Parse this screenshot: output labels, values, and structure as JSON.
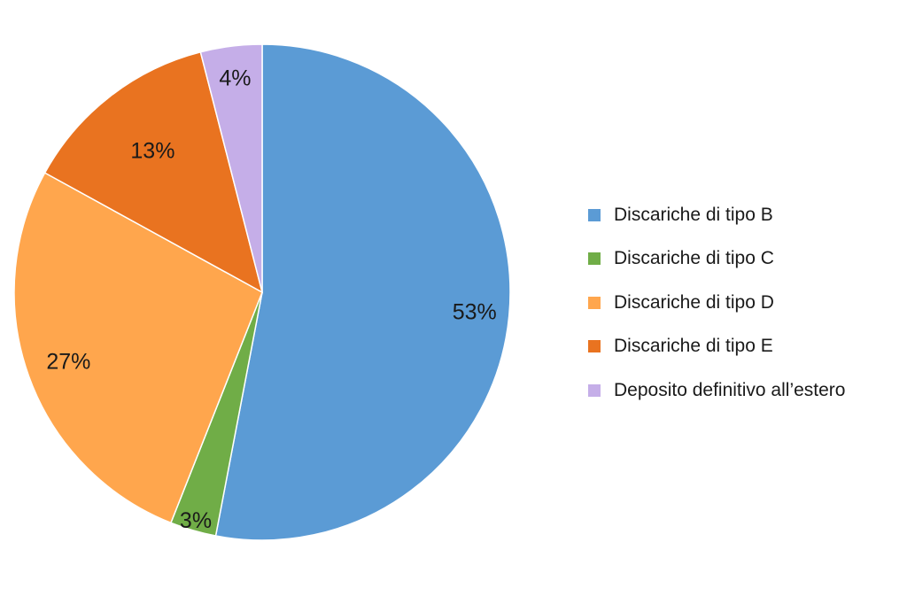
{
  "chart_data": {
    "type": "pie",
    "title": "",
    "legend_position": "right",
    "categories": [
      "Discariche di tipo B",
      "Discariche di tipo C",
      "Discariche di tipo D",
      "Discariche di tipo E",
      "Deposito definitivo all’estero"
    ],
    "values": [
      53,
      3,
      27,
      13,
      4
    ],
    "data_labels": [
      "53%",
      "3%",
      "27%",
      "13%",
      "4%"
    ],
    "colors": [
      "#5b9bd5",
      "#70ad47",
      "#ffa64d",
      "#e97320",
      "#c5aee8"
    ],
    "start_angle_deg": 0,
    "direction": "clockwise"
  }
}
